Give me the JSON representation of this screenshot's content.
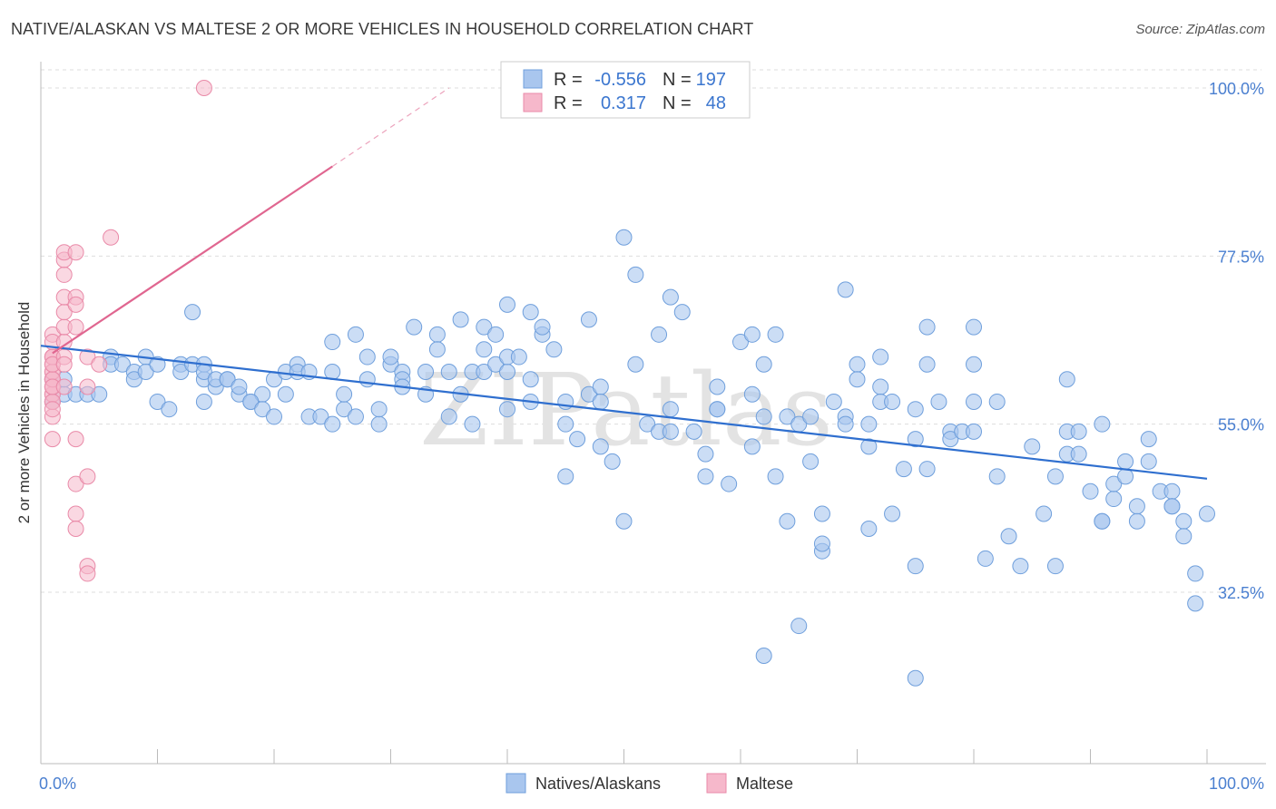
{
  "title": "NATIVE/ALASKAN VS MALTESE 2 OR MORE VEHICLES IN HOUSEHOLD CORRELATION CHART",
  "source": "Source: ZipAtlas.com",
  "watermark": "ZIPatlas",
  "colors": {
    "blue_fill": "#a9c6ee",
    "blue_stroke": "#6f9fdc",
    "blue_line": "#2f6fcf",
    "pink_fill": "#f6b8cb",
    "pink_stroke": "#e98aa8",
    "pink_line": "#e06690",
    "tick_text": "#4a7fd0",
    "grid": "#dddddd"
  },
  "legend": {
    "rows": [
      {
        "r_label": "R =",
        "r_value": "-0.556",
        "n_label": "N =",
        "n_value": "197"
      },
      {
        "r_label": "R =",
        "r_value": "0.317",
        "n_label": "N =",
        "n_value": "48"
      }
    ]
  },
  "bottom_legend": [
    "Natives/Alaskans",
    "Maltese"
  ],
  "chart_data": {
    "type": "scatter",
    "title": "NATIVE/ALASKAN VS MALTESE 2 OR MORE VEHICLES IN HOUSEHOLD CORRELATION CHART",
    "xlabel": "",
    "ylabel": "2 or more Vehicles in Household",
    "xlim": [
      0,
      100
    ],
    "ylim": [
      10,
      102
    ],
    "x_tick_labels": [
      "0.0%",
      "100.0%"
    ],
    "y_tick_labels": [
      "100.0%",
      "77.5%",
      "55.0%",
      "32.5%"
    ],
    "y_ticks": [
      100,
      77.5,
      55,
      32.5
    ],
    "grid": true,
    "legend_position": "top-center",
    "series": [
      {
        "name": "Natives/Alaskans",
        "R": -0.556,
        "N": 197,
        "trend": {
          "x": [
            0,
            100
          ],
          "y": [
            65.5,
            47.7
          ]
        },
        "points": [
          [
            1,
            58
          ],
          [
            1,
            61
          ],
          [
            2,
            59
          ],
          [
            2,
            61
          ],
          [
            3,
            59
          ],
          [
            4,
            59
          ],
          [
            5,
            59
          ],
          [
            6,
            64
          ],
          [
            6,
            63
          ],
          [
            7,
            63
          ],
          [
            8,
            62
          ],
          [
            8,
            61
          ],
          [
            9,
            64
          ],
          [
            9,
            62
          ],
          [
            10,
            58
          ],
          [
            10,
            63
          ],
          [
            11,
            57
          ],
          [
            12,
            63
          ],
          [
            12,
            62
          ],
          [
            13,
            63
          ],
          [
            14,
            61
          ],
          [
            14,
            63
          ],
          [
            14,
            62
          ],
          [
            13,
            70
          ],
          [
            14,
            58
          ],
          [
            15,
            60
          ],
          [
            15,
            61
          ],
          [
            16,
            61
          ],
          [
            16,
            61
          ],
          [
            17,
            59
          ],
          [
            18,
            58
          ],
          [
            17,
            60
          ],
          [
            19,
            59
          ],
          [
            18,
            58
          ],
          [
            19,
            57
          ],
          [
            20,
            56
          ],
          [
            20,
            61
          ],
          [
            21,
            59
          ],
          [
            21,
            62
          ],
          [
            22,
            63
          ],
          [
            22,
            62
          ],
          [
            23,
            56
          ],
          [
            23,
            62
          ],
          [
            24,
            56
          ],
          [
            25,
            55
          ],
          [
            25,
            62
          ],
          [
            25,
            66
          ],
          [
            26,
            57
          ],
          [
            26,
            59
          ],
          [
            27,
            56
          ],
          [
            27,
            67
          ],
          [
            28,
            64
          ],
          [
            28,
            61
          ],
          [
            29,
            55
          ],
          [
            29,
            57
          ],
          [
            30,
            63
          ],
          [
            30,
            64
          ],
          [
            31,
            62
          ],
          [
            31,
            61
          ],
          [
            31,
            60
          ],
          [
            32,
            68
          ],
          [
            33,
            62
          ],
          [
            33,
            59
          ],
          [
            34,
            67
          ],
          [
            34,
            65
          ],
          [
            35,
            62
          ],
          [
            35,
            56
          ],
          [
            36,
            59
          ],
          [
            36,
            69
          ],
          [
            37,
            55
          ],
          [
            37,
            62
          ],
          [
            38,
            62
          ],
          [
            38,
            65
          ],
          [
            38,
            68
          ],
          [
            39,
            63
          ],
          [
            39,
            67
          ],
          [
            40,
            62
          ],
          [
            40,
            64
          ],
          [
            40,
            71
          ],
          [
            40,
            57
          ],
          [
            41,
            64
          ],
          [
            42,
            58
          ],
          [
            42,
            61
          ],
          [
            42,
            70
          ],
          [
            43,
            67
          ],
          [
            43,
            68
          ],
          [
            44,
            65
          ],
          [
            45,
            48
          ],
          [
            45,
            55
          ],
          [
            45,
            58
          ],
          [
            46,
            53
          ],
          [
            47,
            69
          ],
          [
            47,
            59
          ],
          [
            48,
            52
          ],
          [
            48,
            60
          ],
          [
            48,
            58
          ],
          [
            49,
            50
          ],
          [
            50,
            42
          ],
          [
            50,
            80
          ],
          [
            51,
            63
          ],
          [
            51,
            75
          ],
          [
            52,
            55
          ],
          [
            53,
            54
          ],
          [
            53,
            67
          ],
          [
            54,
            54
          ],
          [
            54,
            57
          ],
          [
            54,
            72
          ],
          [
            55,
            70
          ],
          [
            56,
            54
          ],
          [
            57,
            51
          ],
          [
            57,
            48
          ],
          [
            58,
            57
          ],
          [
            58,
            57
          ],
          [
            58,
            60
          ],
          [
            59,
            47
          ],
          [
            60,
            66
          ],
          [
            61,
            59
          ],
          [
            61,
            67
          ],
          [
            61,
            52
          ],
          [
            62,
            63
          ],
          [
            62,
            56
          ],
          [
            62,
            24
          ],
          [
            63,
            48
          ],
          [
            63,
            67
          ],
          [
            64,
            42
          ],
          [
            64,
            56
          ],
          [
            65,
            55
          ],
          [
            65,
            28
          ],
          [
            66,
            56
          ],
          [
            66,
            50
          ],
          [
            67,
            38
          ],
          [
            67,
            39
          ],
          [
            67,
            43
          ],
          [
            68,
            58
          ],
          [
            69,
            56
          ],
          [
            69,
            55
          ],
          [
            69,
            73
          ],
          [
            70,
            63
          ],
          [
            70,
            61
          ],
          [
            71,
            52
          ],
          [
            71,
            41
          ],
          [
            71,
            55
          ],
          [
            72,
            60
          ],
          [
            72,
            64
          ],
          [
            72,
            58
          ],
          [
            73,
            43
          ],
          [
            73,
            58
          ],
          [
            74,
            49
          ],
          [
            75,
            57
          ],
          [
            75,
            53
          ],
          [
            75,
            36
          ],
          [
            75,
            21
          ],
          [
            76,
            49
          ],
          [
            76,
            68
          ],
          [
            76,
            63
          ],
          [
            77,
            58
          ],
          [
            78,
            54
          ],
          [
            78,
            53
          ],
          [
            79,
            54
          ],
          [
            80,
            63
          ],
          [
            80,
            54
          ],
          [
            80,
            58
          ],
          [
            80,
            68
          ],
          [
            81,
            37
          ],
          [
            82,
            48
          ],
          [
            82,
            58
          ],
          [
            83,
            40
          ],
          [
            84,
            36
          ],
          [
            85,
            52
          ],
          [
            86,
            43
          ],
          [
            87,
            36
          ],
          [
            87,
            48
          ],
          [
            88,
            54
          ],
          [
            88,
            61
          ],
          [
            88,
            51
          ],
          [
            89,
            51
          ],
          [
            89,
            54
          ],
          [
            90,
            46
          ],
          [
            91,
            42
          ],
          [
            91,
            42
          ],
          [
            91,
            55
          ],
          [
            92,
            45
          ],
          [
            92,
            47
          ],
          [
            93,
            48
          ],
          [
            93,
            50
          ],
          [
            94,
            44
          ],
          [
            94,
            42
          ],
          [
            95,
            50
          ],
          [
            95,
            53
          ],
          [
            96,
            46
          ],
          [
            97,
            46
          ],
          [
            97,
            44
          ],
          [
            97,
            44
          ],
          [
            98,
            42
          ],
          [
            98,
            40
          ],
          [
            99,
            31
          ],
          [
            99,
            35
          ],
          [
            100,
            43
          ]
        ]
      },
      {
        "name": "Maltese",
        "R": 0.317,
        "N": 48,
        "trend": {
          "x": [
            1,
            25
          ],
          "y": [
            64.5,
            89.5
          ]
        },
        "trend_dashed": {
          "x": [
            25,
            35
          ],
          "y": [
            89.5,
            100
          ]
        },
        "points": [
          [
            1,
            61
          ],
          [
            1,
            63
          ],
          [
            1,
            59
          ],
          [
            1,
            56
          ],
          [
            1,
            60
          ],
          [
            1,
            62
          ],
          [
            1,
            64
          ],
          [
            1,
            58
          ],
          [
            1,
            53
          ],
          [
            1,
            59
          ],
          [
            1,
            61
          ],
          [
            1,
            62
          ],
          [
            1,
            60
          ],
          [
            1,
            64
          ],
          [
            1,
            58
          ],
          [
            1,
            64
          ],
          [
            1,
            67
          ],
          [
            1,
            66
          ],
          [
            1,
            61
          ],
          [
            1,
            63
          ],
          [
            1,
            57
          ],
          [
            1,
            60
          ],
          [
            2,
            66
          ],
          [
            2,
            68
          ],
          [
            2,
            70
          ],
          [
            2,
            72
          ],
          [
            2,
            75
          ],
          [
            2,
            77
          ],
          [
            2,
            78
          ],
          [
            2,
            64
          ],
          [
            2,
            63
          ],
          [
            2,
            60
          ],
          [
            3,
            72
          ],
          [
            3,
            71
          ],
          [
            3,
            78
          ],
          [
            3,
            68
          ],
          [
            3,
            53
          ],
          [
            3,
            47
          ],
          [
            3,
            43
          ],
          [
            3,
            41
          ],
          [
            4,
            64
          ],
          [
            4,
            60
          ],
          [
            4,
            48
          ],
          [
            4,
            36
          ],
          [
            4,
            35
          ],
          [
            5,
            63
          ],
          [
            6,
            80
          ],
          [
            14,
            100
          ]
        ]
      }
    ]
  }
}
